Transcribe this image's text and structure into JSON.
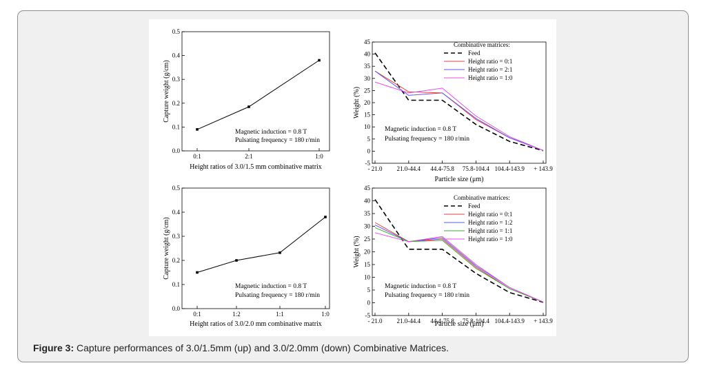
{
  "figure": {
    "caption_label": "Figure 3:",
    "caption_text": "Capture performances of 3.0/1.5mm (up) and 3.0/2.0mm (down) Combinative Matrices."
  },
  "chart_data": [
    {
      "type": "line",
      "categories": [
        "0:1",
        "2:1",
        "1:0"
      ],
      "series": [
        {
          "values": [
            0.09,
            0.185,
            0.38
          ],
          "color": "#000000"
        }
      ],
      "xlabel": "Height ratios of 3.0/1.5 mm combinative matrix",
      "ylabel": "Capture weight (g/cm)",
      "ylim": [
        0.0,
        0.5
      ],
      "yticks": [
        "0.0",
        "0.1",
        "0.2",
        "0.3",
        "0.4",
        "0.5"
      ],
      "annotations": [
        "Magnetic induction = 0.8 T",
        "Pulsating frequency = 180 r/min"
      ]
    },
    {
      "type": "line",
      "categories": [
        "- 21.0",
        "21.0-44.4",
        "44.4-75.8",
        "75.8-104.4",
        "104.4-143.9",
        "+ 143.9"
      ],
      "series": [
        {
          "name": "Feed",
          "values": [
            40.5,
            21,
            21,
            11,
            4,
            0.2
          ],
          "color": "#000000",
          "dashed": true
        },
        {
          "name": "Height ratio = 0:1",
          "values": [
            33,
            24.5,
            24,
            13,
            5.5,
            0.3
          ],
          "color": "#e8413c"
        },
        {
          "name": "Height ratio = 2:1",
          "values": [
            33,
            23,
            24,
            13.5,
            5.5,
            0.3
          ],
          "color": "#5a5ae8"
        },
        {
          "name": "Height ratio = 1:0",
          "values": [
            28.5,
            24,
            26,
            14.5,
            6,
            0.3
          ],
          "color": "#e84ce8"
        }
      ],
      "legend_title": "Combinative matrices:",
      "xlabel": "Particle size (μm)",
      "ylabel": "Weight (%)",
      "ylim": [
        -5,
        45
      ],
      "yticks": [
        "-5",
        "0",
        "5",
        "10",
        "15",
        "20",
        "25",
        "30",
        "35",
        "40",
        "45"
      ],
      "annotations": [
        "Magnetic induction = 0.8 T",
        "Pulsating frequency = 180 r/min"
      ]
    },
    {
      "type": "line",
      "categories": [
        "0:1",
        "1:2",
        "1:1",
        "1:0"
      ],
      "series": [
        {
          "values": [
            0.15,
            0.2,
            0.232,
            0.38
          ],
          "color": "#000000"
        }
      ],
      "xlabel": "Height ratios of 3.0/2.0 mm combinative matrix",
      "ylabel": "Capture weight (g/cm)",
      "ylim": [
        0.0,
        0.5
      ],
      "yticks": [
        "0.0",
        "0.1",
        "0.2",
        "0.3",
        "0.4",
        "0.5"
      ],
      "annotations": [
        "Magnetic induction = 0.8 T",
        "Pulsating frequency = 180 r/min"
      ]
    },
    {
      "type": "line",
      "categories": [
        "- 21.0",
        "21.0-44.4",
        "44.4-75.8",
        "75.8-104.4",
        "104.4-143.9",
        "+ 143.9"
      ],
      "series": [
        {
          "name": "Feed",
          "values": [
            40.5,
            21,
            21,
            11.5,
            4,
            0.2
          ],
          "color": "#000000",
          "dashed": true
        },
        {
          "name": "Height ratio = 0:1",
          "values": [
            31.5,
            24,
            25,
            14,
            5.5,
            0.3
          ],
          "color": "#e8413c"
        },
        {
          "name": "Height ratio = 1:2",
          "values": [
            30.5,
            24,
            25.5,
            14.5,
            6,
            0.3
          ],
          "color": "#5a5ae8"
        },
        {
          "name": "Height ratio = 1:1",
          "values": [
            29.5,
            24,
            24.5,
            13.5,
            5.5,
            0.3
          ],
          "color": "#3aa83a"
        },
        {
          "name": "Height ratio = 1:0",
          "values": [
            27.5,
            24,
            26,
            15,
            6,
            0.3
          ],
          "color": "#e84ce8"
        }
      ],
      "legend_title": "Combinative matrices:",
      "xlabel": "Particle size (μm)",
      "ylabel": "Weight (%)",
      "ylim": [
        -5,
        45
      ],
      "yticks": [
        "-5",
        "0",
        "5",
        "10",
        "15",
        "20",
        "25",
        "30",
        "35",
        "40",
        "45"
      ],
      "annotations": [
        "Magnetic induction = 0.8 T",
        "Pulsating frequency = 180 r/min"
      ]
    }
  ]
}
